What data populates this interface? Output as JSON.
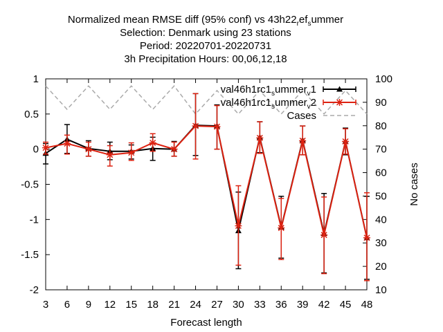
{
  "chart_data": {
    "type": "line",
    "title_lines": [
      {
        "parts": [
          {
            "t": "Normalized mean RMSE diff (95% conf) vs 43h22"
          },
          {
            "t": "r",
            "sub": true
          },
          {
            "t": "ef"
          },
          {
            "t": "s",
            "sub": true
          },
          {
            "t": "ummer"
          }
        ]
      },
      {
        "parts": [
          {
            "t": "Selection: Denmark using    23 stations"
          }
        ]
      },
      {
        "parts": [
          {
            "t": "Period: 20220701-20220731"
          }
        ]
      },
      {
        "parts": [
          {
            "t": "3h Precipitation   Hours:  00,06,12,18"
          }
        ]
      }
    ],
    "xlabel": "Forecast length",
    "ylabel": "",
    "y2label": "No cases",
    "x": [
      3,
      6,
      9,
      12,
      15,
      18,
      21,
      24,
      27,
      30,
      33,
      36,
      39,
      42,
      45,
      48
    ],
    "xlim": [
      3,
      48
    ],
    "ylim": [
      -2,
      1
    ],
    "y2lim": [
      10,
      100
    ],
    "xticks": [
      "3",
      "6",
      "9",
      "12",
      "15",
      "18",
      "21",
      "24",
      "27",
      "30",
      "33",
      "36",
      "39",
      "42",
      "45",
      "48"
    ],
    "yticks": [
      "-2",
      "-1.5",
      "-1",
      "-0.5",
      "0",
      "0.5",
      "1"
    ],
    "y2ticks": [
      "10",
      "20",
      "30",
      "40",
      "50",
      "60",
      "70",
      "80",
      "90",
      "100"
    ],
    "grid": false,
    "legend_position": "top-right",
    "series": [
      {
        "name": "val46h1rc1_summer_v1",
        "name_parts": [
          {
            "t": "val46h1rc1"
          },
          {
            "t": "s",
            "sub": true
          },
          {
            "t": "ummer"
          },
          {
            "t": "v",
            "sub": true
          },
          {
            "t": "1"
          }
        ],
        "color": "#000000",
        "marker": "triangle",
        "axis": "y",
        "values": [
          -0.06,
          0.14,
          0.01,
          -0.03,
          -0.03,
          0.01,
          0.0,
          0.34,
          0.33,
          -1.16,
          0.17,
          -1.11,
          0.13,
          -1.2,
          0.11,
          -1.26
        ],
        "err_low": [
          -0.21,
          -0.06,
          -0.1,
          -0.15,
          -0.14,
          -0.16,
          -0.1,
          -0.09,
          0.0,
          -1.7,
          -0.05,
          -1.55,
          -0.08,
          -1.76,
          -0.08,
          -1.85
        ],
        "err_high": [
          0.08,
          0.35,
          0.12,
          0.1,
          0.06,
          0.17,
          0.11,
          0.79,
          0.63,
          -0.61,
          0.39,
          -0.67,
          0.33,
          -0.63,
          0.3,
          -0.67
        ]
      },
      {
        "name": "val46h1rc1_summer_v2",
        "name_parts": [
          {
            "t": "val46h1rc1"
          },
          {
            "t": "s",
            "sub": true
          },
          {
            "t": "ummer"
          },
          {
            "t": "v",
            "sub": true
          },
          {
            "t": "2"
          }
        ],
        "color": "#dd2211",
        "marker": "star",
        "axis": "y",
        "values": [
          0.02,
          0.08,
          0.0,
          -0.08,
          -0.05,
          0.09,
          0.0,
          0.33,
          0.32,
          -1.09,
          0.16,
          -1.12,
          0.12,
          -1.22,
          0.11,
          -1.26
        ],
        "err_low": [
          -0.07,
          -0.07,
          -0.1,
          -0.24,
          -0.16,
          -0.03,
          -0.1,
          -0.14,
          0.0,
          -1.65,
          -0.06,
          -1.57,
          -0.08,
          -1.77,
          -0.07,
          -1.87
        ],
        "err_high": [
          0.1,
          0.2,
          0.1,
          0.05,
          0.09,
          0.22,
          0.1,
          0.79,
          0.62,
          -0.52,
          0.39,
          -0.7,
          0.33,
          -0.68,
          0.29,
          -0.62
        ]
      },
      {
        "name": "Cases",
        "name_parts": [
          {
            "t": "Cases"
          }
        ],
        "color": "#aaaaaa",
        "dash": true,
        "axis": "y2",
        "values": [
          97,
          87,
          97,
          87,
          97,
          87,
          97,
          85,
          95,
          85,
          95,
          85,
          95,
          85,
          95,
          85
        ]
      }
    ]
  }
}
